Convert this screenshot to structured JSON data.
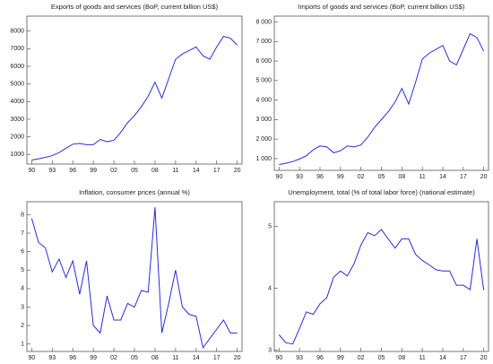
{
  "chart_data": [
    {
      "type": "line",
      "title": "Exports of goods and services (BoP, current billion US$)",
      "x": [
        1990,
        1991,
        1992,
        1993,
        1994,
        1995,
        1996,
        1997,
        1998,
        1999,
        2000,
        2001,
        2002,
        2003,
        2004,
        2005,
        2006,
        2007,
        2008,
        2009,
        2010,
        2011,
        2012,
        2013,
        2014,
        2015,
        2016,
        2017,
        2018,
        2019,
        2020
      ],
      "series": [
        {
          "color": "#2b2bdc",
          "values": [
            680,
            750,
            830,
            930,
            1100,
            1350,
            1580,
            1620,
            1550,
            1550,
            1850,
            1720,
            1800,
            2250,
            2800,
            3200,
            3700,
            4300,
            5100,
            4200,
            5300,
            6400,
            6700,
            6900,
            7100,
            6600,
            6400,
            7100,
            7700,
            7600,
            7200
          ]
        }
      ],
      "xlim": [
        1989.3,
        2020.7
      ],
      "xticks": [
        {
          "value": 1990,
          "label": "90"
        },
        {
          "value": 1993,
          "label": "93"
        },
        {
          "value": 1996,
          "label": "96"
        },
        {
          "value": 1999,
          "label": "99"
        },
        {
          "value": 2002,
          "label": "02"
        },
        {
          "value": 2005,
          "label": "05"
        },
        {
          "value": 2008,
          "label": "08"
        },
        {
          "value": 2011,
          "label": "11"
        },
        {
          "value": 2014,
          "label": "14"
        },
        {
          "value": 2017,
          "label": "17"
        },
        {
          "value": 2020,
          "label": "20"
        }
      ],
      "ylim": [
        450,
        8850
      ],
      "yticks": [
        1000,
        2000,
        3000,
        4000,
        5000,
        6000,
        7000,
        8000
      ]
    },
    {
      "type": "line",
      "title": "Imports of goods and services (BoP, current billion US$)",
      "x": [
        1990,
        1991,
        1992,
        1993,
        1994,
        1995,
        1996,
        1997,
        1998,
        1999,
        2000,
        2001,
        2002,
        2003,
        2004,
        2005,
        2006,
        2007,
        2008,
        2009,
        2010,
        2011,
        2012,
        2013,
        2014,
        2015,
        2016,
        2017,
        2018,
        2019,
        2020
      ],
      "series": [
        {
          "color": "#2b2bdc",
          "values": [
            700,
            760,
            850,
            980,
            1150,
            1450,
            1650,
            1600,
            1300,
            1400,
            1650,
            1600,
            1700,
            2100,
            2600,
            3000,
            3400,
            3900,
            4600,
            3800,
            4900,
            6100,
            6400,
            6600,
            6800,
            6000,
            5800,
            6600,
            7400,
            7200,
            6500
          ]
        }
      ],
      "xlim": [
        1989.3,
        2020.7
      ],
      "xticks": [
        {
          "value": 1990,
          "label": "90"
        },
        {
          "value": 1993,
          "label": "93"
        },
        {
          "value": 1996,
          "label": "96"
        },
        {
          "value": 1999,
          "label": "99"
        },
        {
          "value": 2002,
          "label": "02"
        },
        {
          "value": 2005,
          "label": "05"
        },
        {
          "value": 2008,
          "label": "08"
        },
        {
          "value": 2011,
          "label": "11"
        },
        {
          "value": 2014,
          "label": "14"
        },
        {
          "value": 2017,
          "label": "17"
        },
        {
          "value": 2020,
          "label": "20"
        }
      ],
      "ylim": [
        400,
        8300
      ],
      "yticks": [
        {
          "value": 1000,
          "label": "1 000"
        },
        {
          "value": 2000,
          "label": "2 000"
        },
        {
          "value": 3000,
          "label": "3 000"
        },
        {
          "value": 4000,
          "label": "4 000"
        },
        {
          "value": 5000,
          "label": "5 000"
        },
        {
          "value": 6000,
          "label": "6 000"
        },
        {
          "value": 7000,
          "label": "7 000"
        },
        {
          "value": 8000,
          "label": "8 000"
        }
      ]
    },
    {
      "type": "line",
      "title": "Inflation, consumer prices (annual %)",
      "x": [
        1990,
        1991,
        1992,
        1993,
        1994,
        1995,
        1996,
        1997,
        1998,
        1999,
        2000,
        2001,
        2002,
        2003,
        2004,
        2005,
        2006,
        2007,
        2008,
        2009,
        2010,
        2011,
        2012,
        2013,
        2014,
        2015,
        2016,
        2017,
        2018,
        2019,
        2020
      ],
      "series": [
        {
          "color": "#2b2bdc",
          "values": [
            7.8,
            6.5,
            6.2,
            4.9,
            5.6,
            4.6,
            5.5,
            3.7,
            5.5,
            2.0,
            1.6,
            3.6,
            2.3,
            2.3,
            3.2,
            3.0,
            3.9,
            3.8,
            8.4,
            1.6,
            3.2,
            5.0,
            3.0,
            2.6,
            2.5,
            0.8,
            1.3,
            1.8,
            2.3,
            1.6,
            1.6
          ]
        }
      ],
      "xlim": [
        1989.3,
        2020.7
      ],
      "xticks": [
        {
          "value": 1990,
          "label": "90"
        },
        {
          "value": 1993,
          "label": "93"
        },
        {
          "value": 1996,
          "label": "96"
        },
        {
          "value": 1999,
          "label": "99"
        },
        {
          "value": 2002,
          "label": "02"
        },
        {
          "value": 2005,
          "label": "05"
        },
        {
          "value": 2008,
          "label": "08"
        },
        {
          "value": 2011,
          "label": "11"
        },
        {
          "value": 2014,
          "label": "14"
        },
        {
          "value": 2017,
          "label": "17"
        },
        {
          "value": 2020,
          "label": "20"
        }
      ],
      "ylim": [
        0.6,
        8.7
      ],
      "yticks": [
        1,
        2,
        3,
        4,
        5,
        6,
        7,
        8
      ]
    },
    {
      "type": "line",
      "title": "Unemployment, total (% of total labor force) (national estimate)",
      "x": [
        1990,
        1991,
        1992,
        1993,
        1994,
        1995,
        1996,
        1997,
        1998,
        1999,
        2000,
        2001,
        2002,
        2003,
        2004,
        2005,
        2006,
        2007,
        2008,
        2009,
        2010,
        2011,
        2012,
        2013,
        2014,
        2015,
        2016,
        2017,
        2018,
        2019,
        2020
      ],
      "series": [
        {
          "color": "#2b2bdc",
          "values": [
            3.25,
            3.12,
            3.1,
            3.35,
            3.62,
            3.58,
            3.75,
            3.85,
            4.18,
            4.28,
            4.2,
            4.4,
            4.7,
            4.9,
            4.85,
            4.95,
            4.8,
            4.65,
            4.8,
            4.8,
            4.55,
            4.45,
            4.38,
            4.3,
            4.28,
            4.28,
            4.05,
            4.05,
            3.98,
            4.8,
            3.97
          ]
        }
      ],
      "xlim": [
        1989.3,
        2020.7
      ],
      "xticks": [
        {
          "value": 1990,
          "label": "90"
        },
        {
          "value": 1993,
          "label": "93"
        },
        {
          "value": 1996,
          "label": "96"
        },
        {
          "value": 1999,
          "label": "99"
        },
        {
          "value": 2002,
          "label": "02"
        },
        {
          "value": 2005,
          "label": "05"
        },
        {
          "value": 2008,
          "label": "08"
        },
        {
          "value": 2011,
          "label": "11"
        },
        {
          "value": 2014,
          "label": "14"
        },
        {
          "value": 2017,
          "label": "17"
        },
        {
          "value": 2020,
          "label": "20"
        }
      ],
      "ylim": [
        2.98,
        5.4
      ],
      "yticks": [
        3,
        4,
        5
      ]
    }
  ]
}
